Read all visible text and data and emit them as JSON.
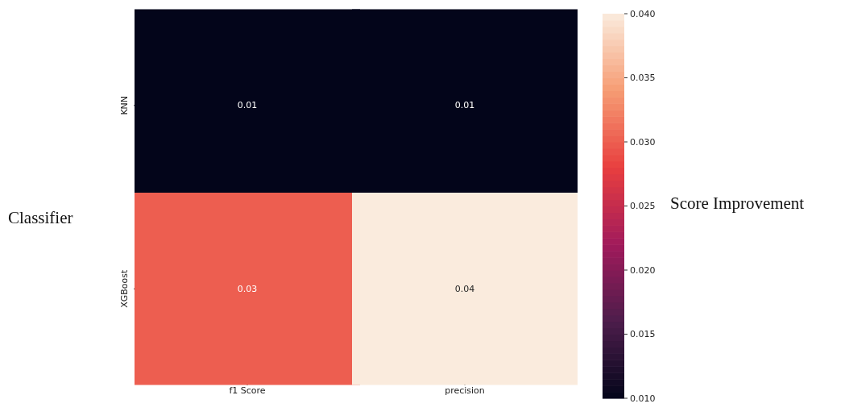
{
  "chart_data": {
    "type": "heatmap",
    "ylabel": "Classifier",
    "clabel": "Score Improvement",
    "categories": [
      "f1 Score",
      "precision"
    ],
    "y_categories": [
      "KNN",
      "XGBoost"
    ],
    "cells": [
      [
        0.01,
        0.01
      ],
      [
        0.03,
        0.04
      ]
    ],
    "clim": [
      0.01,
      0.04
    ],
    "cticks": [
      {
        "value": 0.01,
        "label": "0.010"
      },
      {
        "value": 0.015,
        "label": "0.015"
      },
      {
        "value": 0.02,
        "label": "0.020"
      },
      {
        "value": 0.025,
        "label": "0.025"
      },
      {
        "value": 0.03,
        "label": "0.030"
      },
      {
        "value": 0.035,
        "label": "0.035"
      },
      {
        "value": 0.04,
        "label": "0.040"
      }
    ],
    "data_labels": true
  }
}
